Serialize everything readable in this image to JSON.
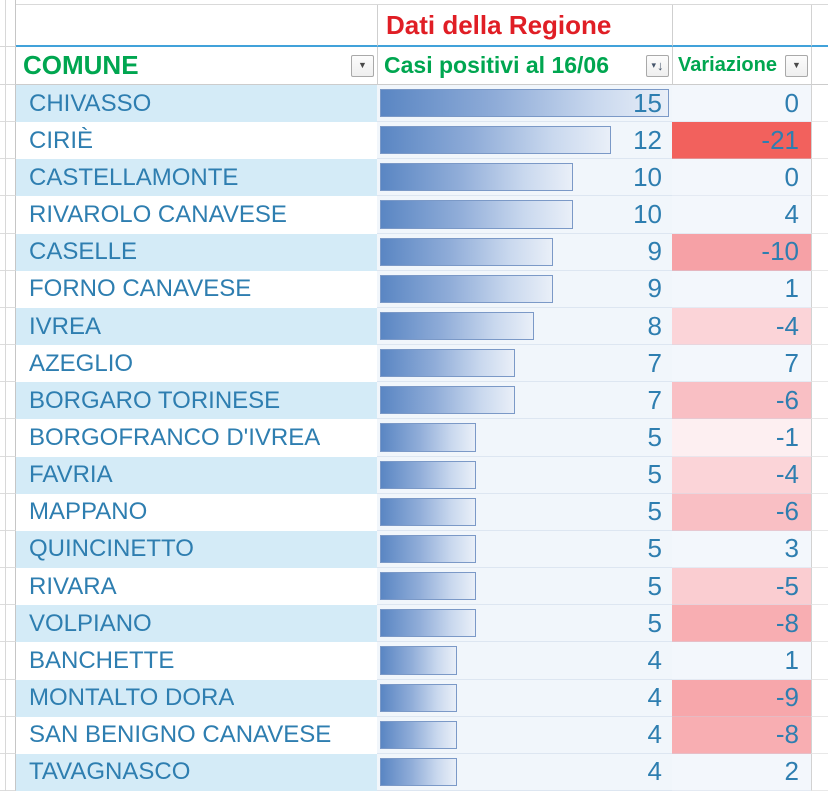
{
  "header": {
    "region_title": "Dati della Regione",
    "columns": {
      "comune": {
        "label": "COMUNE"
      },
      "casi": {
        "label": "Casi positivi al 16/06"
      },
      "variazione": {
        "label": "Variazione"
      }
    }
  },
  "icons": {
    "dropdown_glyph": "▼",
    "funnel_glyph": "▾",
    "arrow_down_glyph": "↓"
  },
  "colors": {
    "header_green": "#00A650",
    "title_red": "#E01E25",
    "text_teal": "#2E7EB0",
    "band_blue": "#D4EBF7",
    "bar_fill_start": "#5A86C3",
    "bar_fill_end": "#E9EFF8",
    "bar_border": "#7B99C7",
    "underline_blue": "#41A2DA",
    "neg_strong_red": "#F2615D"
  },
  "table": {
    "max_casi": 15,
    "rows": [
      {
        "comune": "CHIVASSO",
        "casi": 15,
        "variazione": 0
      },
      {
        "comune": "CIRIÈ",
        "casi": 12,
        "variazione": -21,
        "var_bg": "#F2615D"
      },
      {
        "comune": "CASTELLAMONTE",
        "casi": 10,
        "variazione": 0
      },
      {
        "comune": "RIVAROLO CANAVESE",
        "casi": 10,
        "variazione": 4
      },
      {
        "comune": "CASELLE",
        "casi": 9,
        "variazione": -10,
        "var_bg": "#F6A1A6"
      },
      {
        "comune": "FORNO CANAVESE",
        "casi": 9,
        "variazione": 1
      },
      {
        "comune": "IVREA",
        "casi": 8,
        "variazione": -4,
        "var_bg": "#FBD4D8"
      },
      {
        "comune": "AZEGLIO",
        "casi": 7,
        "variazione": 7
      },
      {
        "comune": "BORGARO TORINESE",
        "casi": 7,
        "variazione": -6,
        "var_bg": "#F9BFC4"
      },
      {
        "comune": "BORGOFRANCO D'IVREA",
        "casi": 5,
        "variazione": -1,
        "var_bg": "#FDEFF1"
      },
      {
        "comune": "FAVRIA",
        "casi": 5,
        "variazione": -4,
        "var_bg": "#FBD4D8"
      },
      {
        "comune": "MAPPANO",
        "casi": 5,
        "variazione": -6,
        "var_bg": "#F9BFC4"
      },
      {
        "comune": "QUINCINETTO",
        "casi": 5,
        "variazione": 3
      },
      {
        "comune": "RIVARA",
        "casi": 5,
        "variazione": -5,
        "var_bg": "#FACDD1"
      },
      {
        "comune": "VOLPIANO",
        "casi": 5,
        "variazione": -8,
        "var_bg": "#F8AEB2"
      },
      {
        "comune": "BANCHETTE",
        "casi": 4,
        "variazione": 1
      },
      {
        "comune": "MONTALTO DORA",
        "casi": 4,
        "variazione": -9,
        "var_bg": "#F7A7AB"
      },
      {
        "comune": "SAN BENIGNO CANAVESE",
        "casi": 4,
        "variazione": -8,
        "var_bg": "#F8AEB2"
      },
      {
        "comune": "TAVAGNASCO",
        "casi": 4,
        "variazione": 2
      }
    ]
  },
  "chart_data": {
    "type": "bar",
    "orientation": "horizontal",
    "title": "Dati della Regione",
    "categories": [
      "CHIVASSO",
      "CIRIÈ",
      "CASTELLAMONTE",
      "RIVAROLO CANAVESE",
      "CASELLE",
      "FORNO CANAVESE",
      "IVREA",
      "AZEGLIO",
      "BORGARO TORINESE",
      "BORGOFRANCO D'IVREA",
      "FAVRIA",
      "MAPPANO",
      "QUINCINETTO",
      "RIVARA",
      "VOLPIANO",
      "BANCHETTE",
      "MONTALTO DORA",
      "SAN BENIGNO CANAVESE",
      "TAVAGNASCO"
    ],
    "series": [
      {
        "name": "Casi positivi al 16/06",
        "values": [
          15,
          12,
          10,
          10,
          9,
          9,
          8,
          7,
          7,
          5,
          5,
          5,
          5,
          5,
          5,
          4,
          4,
          4,
          4
        ]
      },
      {
        "name": "Variazione",
        "values": [
          0,
          -21,
          0,
          4,
          -10,
          1,
          -4,
          7,
          -6,
          -1,
          -4,
          -6,
          3,
          -5,
          -8,
          1,
          -9,
          -8,
          2
        ]
      }
    ],
    "xlim": [
      0,
      15
    ],
    "grid": false,
    "legend": "none"
  }
}
